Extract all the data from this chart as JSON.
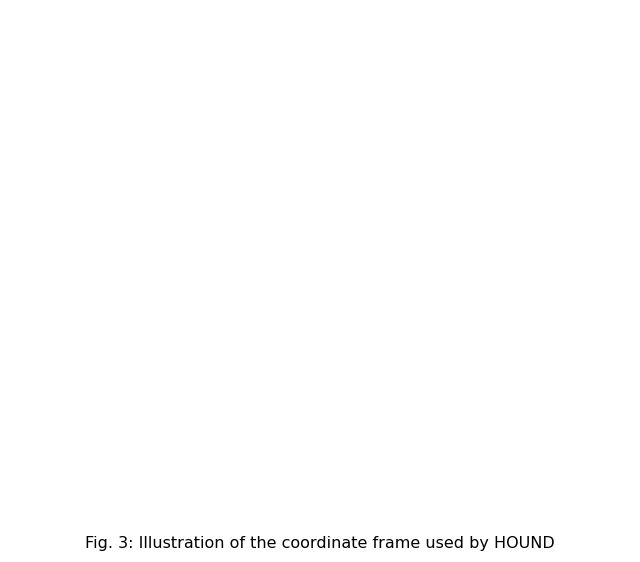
{
  "caption": "Fig. 3: Illustration of the coordinate frame used by HOUND",
  "bg_color": "#ffffff",
  "figsize": [
    6.4,
    5.62
  ],
  "dpi": 100
}
